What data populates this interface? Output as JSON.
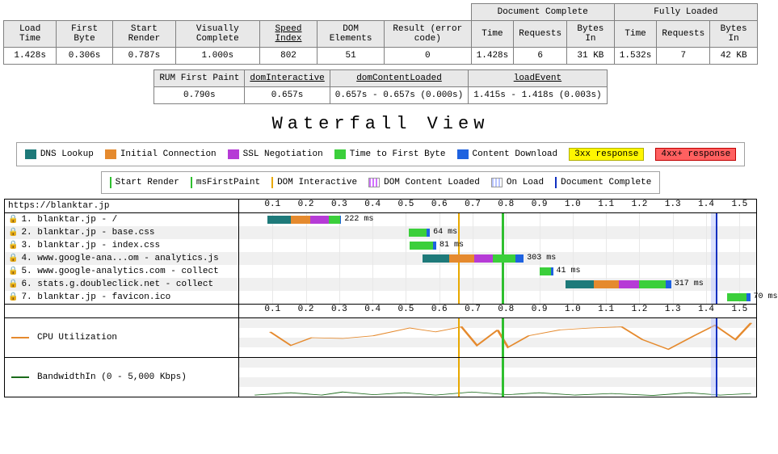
{
  "colors": {
    "dns": "#1e7a7a",
    "conn": "#e58a2e",
    "ssl": "#b63bd6",
    "ttfb": "#3bcf3b",
    "download": "#1e62e0",
    "yellow3xx": "#fff600",
    "red4xx": "#ff6060",
    "startRender": "#2fbf2f",
    "firstPaint": "#2fbf2f",
    "domInteractive": "#e8a800",
    "domContentLoaded": "#d070ff",
    "onLoad": "#b8c4ff",
    "docComplete": "#1030c0",
    "cpu": "#e58a2e",
    "bandwidth": "#1a6a1a",
    "headerBg": "#e8e8e8",
    "border": "#808080"
  },
  "metricsTop": {
    "groups": [
      "",
      "Document Complete",
      "Fully Loaded"
    ],
    "cols": [
      "Load Time",
      "First Byte",
      "Start Render",
      "Visually Complete",
      "Speed Index",
      "DOM Elements",
      "Result (error code)",
      "Time",
      "Requests",
      "Bytes In",
      "Time",
      "Requests",
      "Bytes In"
    ],
    "underlineCols": [
      4
    ],
    "vals": [
      "1.428s",
      "0.306s",
      "0.787s",
      "1.000s",
      "802",
      "51",
      "0",
      "1.428s",
      "6",
      "31 KB",
      "1.532s",
      "7",
      "42 KB"
    ]
  },
  "metricsSub": {
    "cols": [
      "RUM First Paint",
      "domInteractive",
      "domContentLoaded",
      "loadEvent"
    ],
    "underlineCols": [
      1,
      2,
      3
    ],
    "vals": [
      "0.790s",
      "0.657s",
      "0.657s - 0.657s (0.000s)",
      "1.415s - 1.418s (0.003s)"
    ]
  },
  "title": "Waterfall View",
  "legend1": [
    {
      "label": "DNS Lookup",
      "colorKey": "dns"
    },
    {
      "label": "Initial Connection",
      "colorKey": "conn"
    },
    {
      "label": "SSL Negotiation",
      "colorKey": "ssl"
    },
    {
      "label": "Time to First Byte",
      "colorKey": "ttfb"
    },
    {
      "label": "Content Download",
      "colorKey": "download"
    }
  ],
  "legend1_tags": [
    {
      "label": "3xx response",
      "cls": "tag-3xx"
    },
    {
      "label": "4xx+ response",
      "cls": "tag-4xx"
    }
  ],
  "legend2": [
    {
      "label": "Start Render",
      "colorKey": "startRender",
      "type": "vbar"
    },
    {
      "label": "msFirstPaint",
      "colorKey": "firstPaint",
      "type": "vbar"
    },
    {
      "label": "DOM Interactive",
      "colorKey": "domInteractive",
      "type": "vbar"
    },
    {
      "label": "DOM Content Loaded",
      "colorKey": "domContentLoaded",
      "type": "hash"
    },
    {
      "label": "On Load",
      "colorKey": "onLoad",
      "type": "hash"
    },
    {
      "label": "Document Complete",
      "colorKey": "docComplete",
      "type": "vbar"
    }
  ],
  "waterfall": {
    "url": "https://blanktar.jp",
    "timeMax": 1.55,
    "ticks": [
      0.1,
      0.2,
      0.3,
      0.4,
      0.5,
      0.6,
      0.7,
      0.8,
      0.9,
      1.0,
      1.1,
      1.2,
      1.3,
      1.4,
      1.5
    ],
    "markers": [
      {
        "t": 0.657,
        "colorKey": "domInteractive",
        "w": 2
      },
      {
        "t": 0.787,
        "colorKey": "startRender",
        "w": 3
      },
      {
        "t": 1.415,
        "colorKey": "onLoad",
        "w": 6
      },
      {
        "t": 1.428,
        "colorKey": "docComplete",
        "w": 2
      }
    ],
    "rows": [
      {
        "label": "1. blanktar.jp - /",
        "dur": "222 ms",
        "start": 0.084,
        "segs": [
          {
            "k": "dns",
            "d": 0.07
          },
          {
            "k": "conn",
            "d": 0.06
          },
          {
            "k": "ssl",
            "d": 0.055
          },
          {
            "k": "ttfb",
            "d": 0.033
          },
          {
            "k": "download",
            "d": 0.004
          }
        ]
      },
      {
        "label": "2. blanktar.jp - base.css",
        "dur": "64 ms",
        "start": 0.508,
        "segs": [
          {
            "k": "ttfb",
            "d": 0.055
          },
          {
            "k": "download",
            "d": 0.009
          }
        ]
      },
      {
        "label": "3. blanktar.jp - index.css",
        "dur": "81 ms",
        "start": 0.51,
        "segs": [
          {
            "k": "ttfb",
            "d": 0.072
          },
          {
            "k": "download",
            "d": 0.009
          }
        ]
      },
      {
        "label": "4. www.google-ana...om - analytics.js",
        "dur": "303 ms",
        "start": 0.55,
        "segs": [
          {
            "k": "dns",
            "d": 0.08
          },
          {
            "k": "conn",
            "d": 0.075
          },
          {
            "k": "ssl",
            "d": 0.055
          },
          {
            "k": "ttfb",
            "d": 0.068
          },
          {
            "k": "download",
            "d": 0.025
          }
        ]
      },
      {
        "label": "5. www.google-analytics.com - collect",
        "dur": "41 ms",
        "start": 0.9,
        "segs": [
          {
            "k": "ttfb",
            "d": 0.036
          },
          {
            "k": "download",
            "d": 0.005
          }
        ]
      },
      {
        "label": "6. stats.g.doubleclick.net - collect",
        "dur": "317 ms",
        "start": 0.978,
        "segs": [
          {
            "k": "dns",
            "d": 0.085
          },
          {
            "k": "conn",
            "d": 0.075
          },
          {
            "k": "ssl",
            "d": 0.06
          },
          {
            "k": "ttfb",
            "d": 0.082
          },
          {
            "k": "download",
            "d": 0.015
          }
        ]
      },
      {
        "label": "7. blanktar.jp - favicon.ico",
        "dur": "70 ms",
        "start": 1.462,
        "segs": [
          {
            "k": "ttfb",
            "d": 0.06
          },
          {
            "k": "download",
            "d": 0.01
          }
        ]
      }
    ]
  },
  "cpu": {
    "label": "CPU Utilization",
    "colorKey": "cpu",
    "points": [
      [
        0.06,
        0.35
      ],
      [
        0.1,
        0.7
      ],
      [
        0.14,
        0.5
      ],
      [
        0.2,
        0.52
      ],
      [
        0.26,
        0.45
      ],
      [
        0.33,
        0.25
      ],
      [
        0.38,
        0.35
      ],
      [
        0.43,
        0.22
      ],
      [
        0.46,
        0.7
      ],
      [
        0.5,
        0.3
      ],
      [
        0.52,
        0.75
      ],
      [
        0.56,
        0.45
      ],
      [
        0.62,
        0.3
      ],
      [
        0.68,
        0.25
      ],
      [
        0.74,
        0.22
      ],
      [
        0.78,
        0.55
      ],
      [
        0.83,
        0.8
      ],
      [
        0.88,
        0.45
      ],
      [
        0.92,
        0.18
      ],
      [
        0.96,
        0.55
      ],
      [
        0.99,
        0.12
      ]
    ]
  },
  "bw": {
    "label": "BandwidthIn (0 - 5,000 Kbps)",
    "colorKey": "bandwidth",
    "points": [
      [
        0.03,
        0.96
      ],
      [
        0.1,
        0.9
      ],
      [
        0.16,
        0.96
      ],
      [
        0.2,
        0.88
      ],
      [
        0.26,
        0.95
      ],
      [
        0.32,
        0.9
      ],
      [
        0.38,
        0.96
      ],
      [
        0.45,
        0.88
      ],
      [
        0.52,
        0.95
      ],
      [
        0.58,
        0.9
      ],
      [
        0.65,
        0.96
      ],
      [
        0.72,
        0.92
      ],
      [
        0.8,
        0.97
      ],
      [
        0.87,
        0.9
      ],
      [
        0.93,
        0.96
      ],
      [
        0.99,
        0.92
      ]
    ]
  }
}
